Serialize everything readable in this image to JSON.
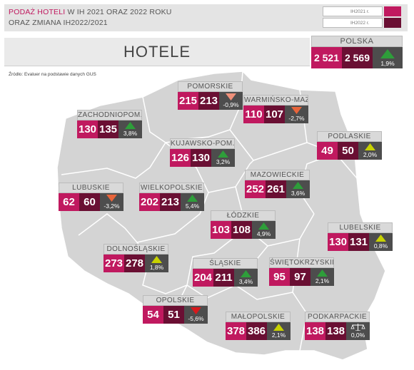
{
  "header": {
    "title_highlight": "PODAŻ HOTELI",
    "title_rest": " W IH 2021 ORAZ 2022 ROKU",
    "title_line2": "ORAZ ZMIANA IH2022/2021",
    "legend": [
      {
        "label": "IH2021 r.",
        "color": "#c0195f"
      },
      {
        "label": "IH2022 r.",
        "color": "#6a0f33"
      }
    ]
  },
  "banner": {
    "title": "HOTELE"
  },
  "source": "Źródło: Evaluer na podstawie danych GUS",
  "colors": {
    "y2021": "#c0195f",
    "y2022": "#6a0f33",
    "change_bg": "#4d4d4d",
    "up_strong": "#2e9e3a",
    "up_weak": "#c8d200",
    "down_weak": "#f0907a",
    "down_mid": "#e8643a",
    "down_strong": "#d7191c",
    "map_fill": "#d4d4d4",
    "map_stroke": "#ffffff"
  },
  "chart_data": {
    "type": "table",
    "title": "HOTELE",
    "columns": [
      "IH2021 r.",
      "IH2022 r.",
      "zmiana"
    ],
    "total": {
      "name": "POLSKA",
      "ih2021": "2 521",
      "ih2022": "2 569",
      "change": "1,9%",
      "direction": "up_strong"
    },
    "regions": [
      {
        "name": "POMORSKIE",
        "ih2021": 215,
        "ih2022": 213,
        "change": "-0,9%",
        "direction": "down_weak"
      },
      {
        "name": "WARMIŃSKO-MAZ.",
        "ih2021": 110,
        "ih2022": 107,
        "change": "-2,7%",
        "direction": "down_mid"
      },
      {
        "name": "ZACHODNIOPOM.",
        "ih2021": 130,
        "ih2022": 135,
        "change": "3,8%",
        "direction": "up_strong"
      },
      {
        "name": "PODLASKIE",
        "ih2021": 49,
        "ih2022": 50,
        "change": "2,0%",
        "direction": "up_weak"
      },
      {
        "name": "KUJAWSKO-POM.",
        "ih2021": 126,
        "ih2022": 130,
        "change": "3,2%",
        "direction": "up_strong"
      },
      {
        "name": "MAZOWIECKIE",
        "ih2021": 252,
        "ih2022": 261,
        "change": "3,6%",
        "direction": "up_strong"
      },
      {
        "name": "LUBUSKIE",
        "ih2021": 62,
        "ih2022": 60,
        "change": "-3,2%",
        "direction": "down_mid"
      },
      {
        "name": "WIELKOPOLSKIE",
        "ih2021": 202,
        "ih2022": 213,
        "change": "5,4%",
        "direction": "up_strong"
      },
      {
        "name": "ŁÓDZKIE",
        "ih2021": 103,
        "ih2022": 108,
        "change": "4,9%",
        "direction": "up_strong"
      },
      {
        "name": "LUBELSKIE",
        "ih2021": 130,
        "ih2022": 131,
        "change": "0,8%",
        "direction": "up_weak"
      },
      {
        "name": "DOLNOŚLĄSKIE",
        "ih2021": 273,
        "ih2022": 278,
        "change": "1,8%",
        "direction": "up_weak"
      },
      {
        "name": "ŚLĄSKIE",
        "ih2021": 204,
        "ih2022": 211,
        "change": "3,4%",
        "direction": "up_strong"
      },
      {
        "name": "ŚWIĘTOKRZYSKIE",
        "ih2021": 95,
        "ih2022": 97,
        "change": "2,1%",
        "direction": "up_strong"
      },
      {
        "name": "OPOLSKIE",
        "ih2021": 54,
        "ih2022": 51,
        "change": "-5,6%",
        "direction": "down_strong"
      },
      {
        "name": "MAŁOPOLSKIE",
        "ih2021": 378,
        "ih2022": 386,
        "change": "2,1%",
        "direction": "up_weak"
      },
      {
        "name": "PODKARPACKIE",
        "ih2021": 138,
        "ih2022": 138,
        "change": "0,0%",
        "direction": "equal"
      }
    ]
  }
}
